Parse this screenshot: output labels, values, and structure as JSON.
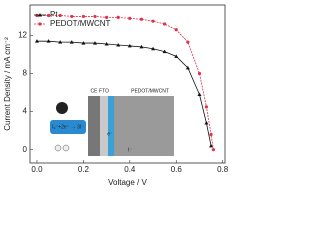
{
  "chart_data": {
    "type": "line",
    "x_label": "Voltage / V",
    "y_label": "Current Density / mA cm⁻²",
    "x": [
      0,
      0.05,
      0.1,
      0.15,
      0.2,
      0.25,
      0.3,
      0.35,
      0.4,
      0.45,
      0.5,
      0.55,
      0.6,
      0.65,
      0.7,
      0.73,
      0.75,
      0.76
    ],
    "series": [
      {
        "name": "Pt",
        "color": "#111111",
        "marker": "triangle",
        "values": [
          11.4,
          11.4,
          11.3,
          11.3,
          11.2,
          11.2,
          11.1,
          11.0,
          10.9,
          10.8,
          10.6,
          10.3,
          9.8,
          8.6,
          5.8,
          2.8,
          0.4,
          null
        ]
      },
      {
        "name": "PEDOT/MWCNT",
        "color": "#e0324a",
        "marker": "circle",
        "values": [
          14.1,
          14.1,
          14.1,
          14.0,
          14.0,
          14.0,
          13.9,
          13.9,
          13.8,
          13.7,
          13.5,
          13.2,
          12.6,
          11.3,
          8.0,
          4.5,
          1.6,
          0
        ]
      }
    ],
    "xlim": [
      -0.03,
      0.81
    ],
    "ylim": [
      -1.4,
      15.2
    ],
    "xticks": [
      {
        "value": 0,
        "label": "0.0"
      },
      0.2,
      0.4,
      0.6,
      0.8
    ],
    "yticks": [
      0,
      4,
      8,
      12
    ],
    "legend": "upper left",
    "annotations": [
      "CE",
      "FTO",
      "PEDOT/MWCNT",
      "I₃⁻",
      "I₃⁻+2e⁻ → 3I⁻",
      "e⁻",
      "I⁻"
    ]
  }
}
